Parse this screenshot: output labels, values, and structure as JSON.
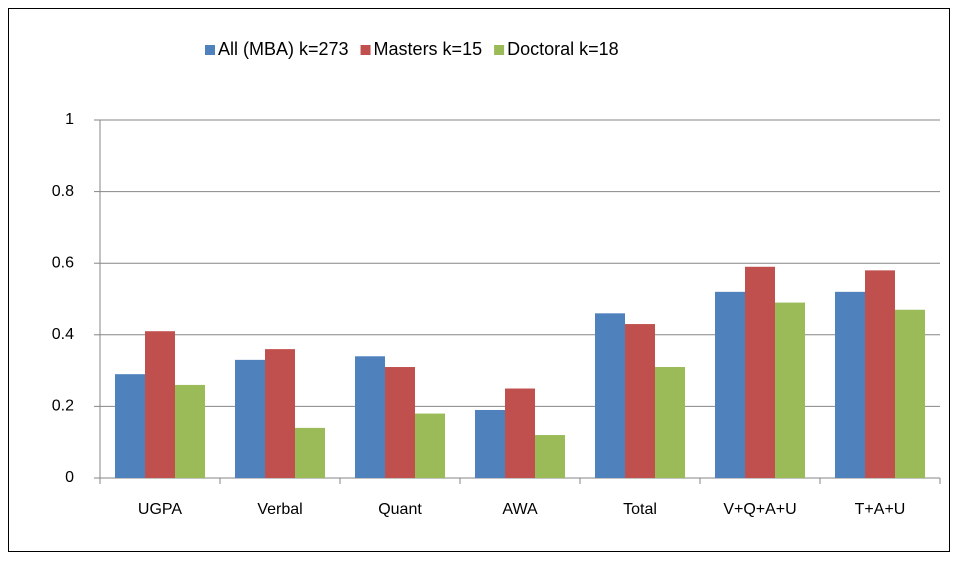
{
  "chart_data": {
    "type": "bar",
    "categories": [
      "UGPA",
      "Verbal",
      "Quant",
      "AWA",
      "Total",
      "V+Q+A+U",
      "T+A+U"
    ],
    "series": [
      {
        "name": "All (MBA) k=273",
        "color": "#4f81bd",
        "values": [
          0.29,
          0.33,
          0.34,
          0.19,
          0.46,
          0.52,
          0.52
        ]
      },
      {
        "name": "Masters k=15",
        "color": "#c0504d",
        "values": [
          0.41,
          0.36,
          0.31,
          0.25,
          0.43,
          0.59,
          0.58
        ]
      },
      {
        "name": "Doctoral k=18",
        "color": "#9bbb59",
        "values": [
          0.26,
          0.14,
          0.18,
          0.12,
          0.31,
          0.49,
          0.47
        ]
      }
    ],
    "ylim": [
      0,
      1
    ],
    "yticks": [
      0,
      0.2,
      0.4,
      0.6,
      0.8,
      1
    ],
    "grid": true,
    "legend": "top"
  }
}
